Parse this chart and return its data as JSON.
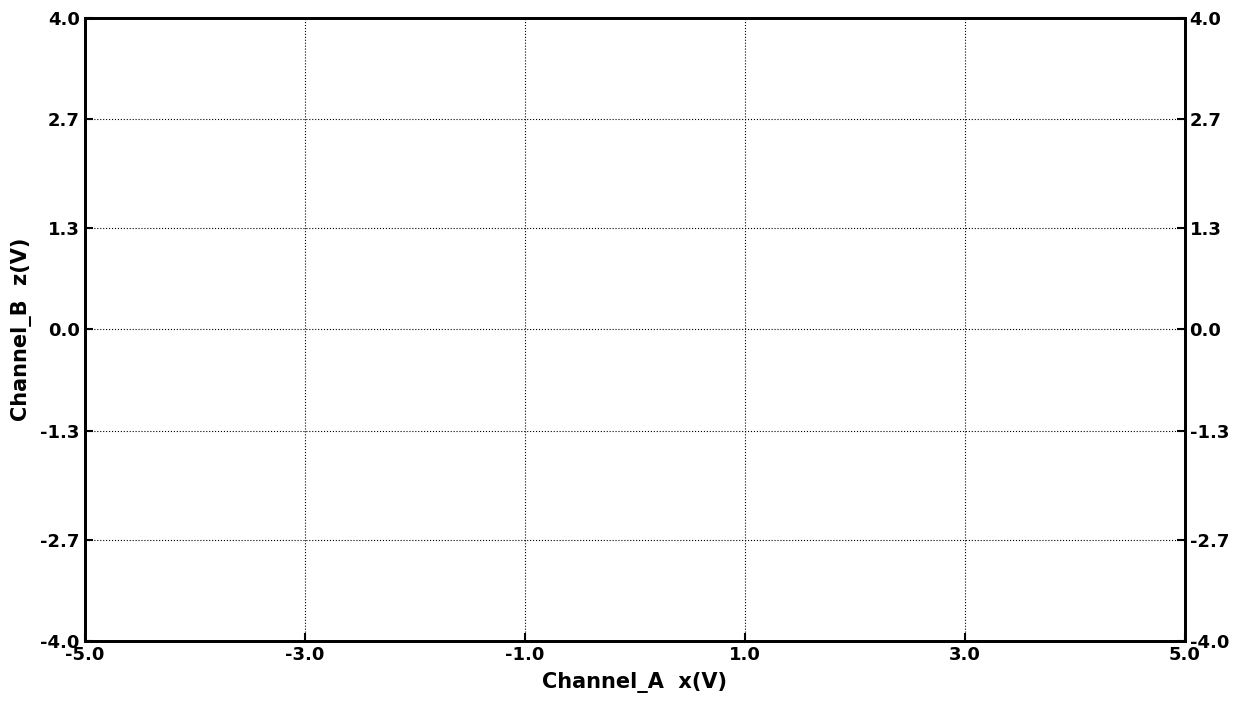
{
  "title": "",
  "xlabel": "Channel_A  x(V)",
  "ylabel": "Channel_B  z(V)",
  "xlim": [
    -5.0,
    5.0
  ],
  "ylim": [
    -4.0,
    4.0
  ],
  "xticks": [
    -5.0,
    -3.0,
    -1.0,
    1.0,
    3.0,
    5.0
  ],
  "yticks": [
    -4.0,
    -2.7,
    -1.3,
    0.0,
    1.3,
    2.7,
    4.0
  ],
  "xtick_labels": [
    "-5.0",
    "-3.0",
    "-1.0",
    "1.0",
    "3.0",
    "5.0"
  ],
  "ytick_labels": [
    "-4.0",
    "-2.7",
    "-1.3",
    "0.0",
    "1.3",
    "2.7",
    "4.0"
  ],
  "line_color": "#000000",
  "line_width": 0.5,
  "background_color": "#ffffff",
  "grid_color": "#000000",
  "grid_linestyle": ":",
  "grid_linewidth": 0.8,
  "figsize": [
    12.4,
    7.04
  ],
  "dpi": 100,
  "tick_fontsize": 13,
  "label_fontsize": 15,
  "spine_linewidth": 2.0
}
